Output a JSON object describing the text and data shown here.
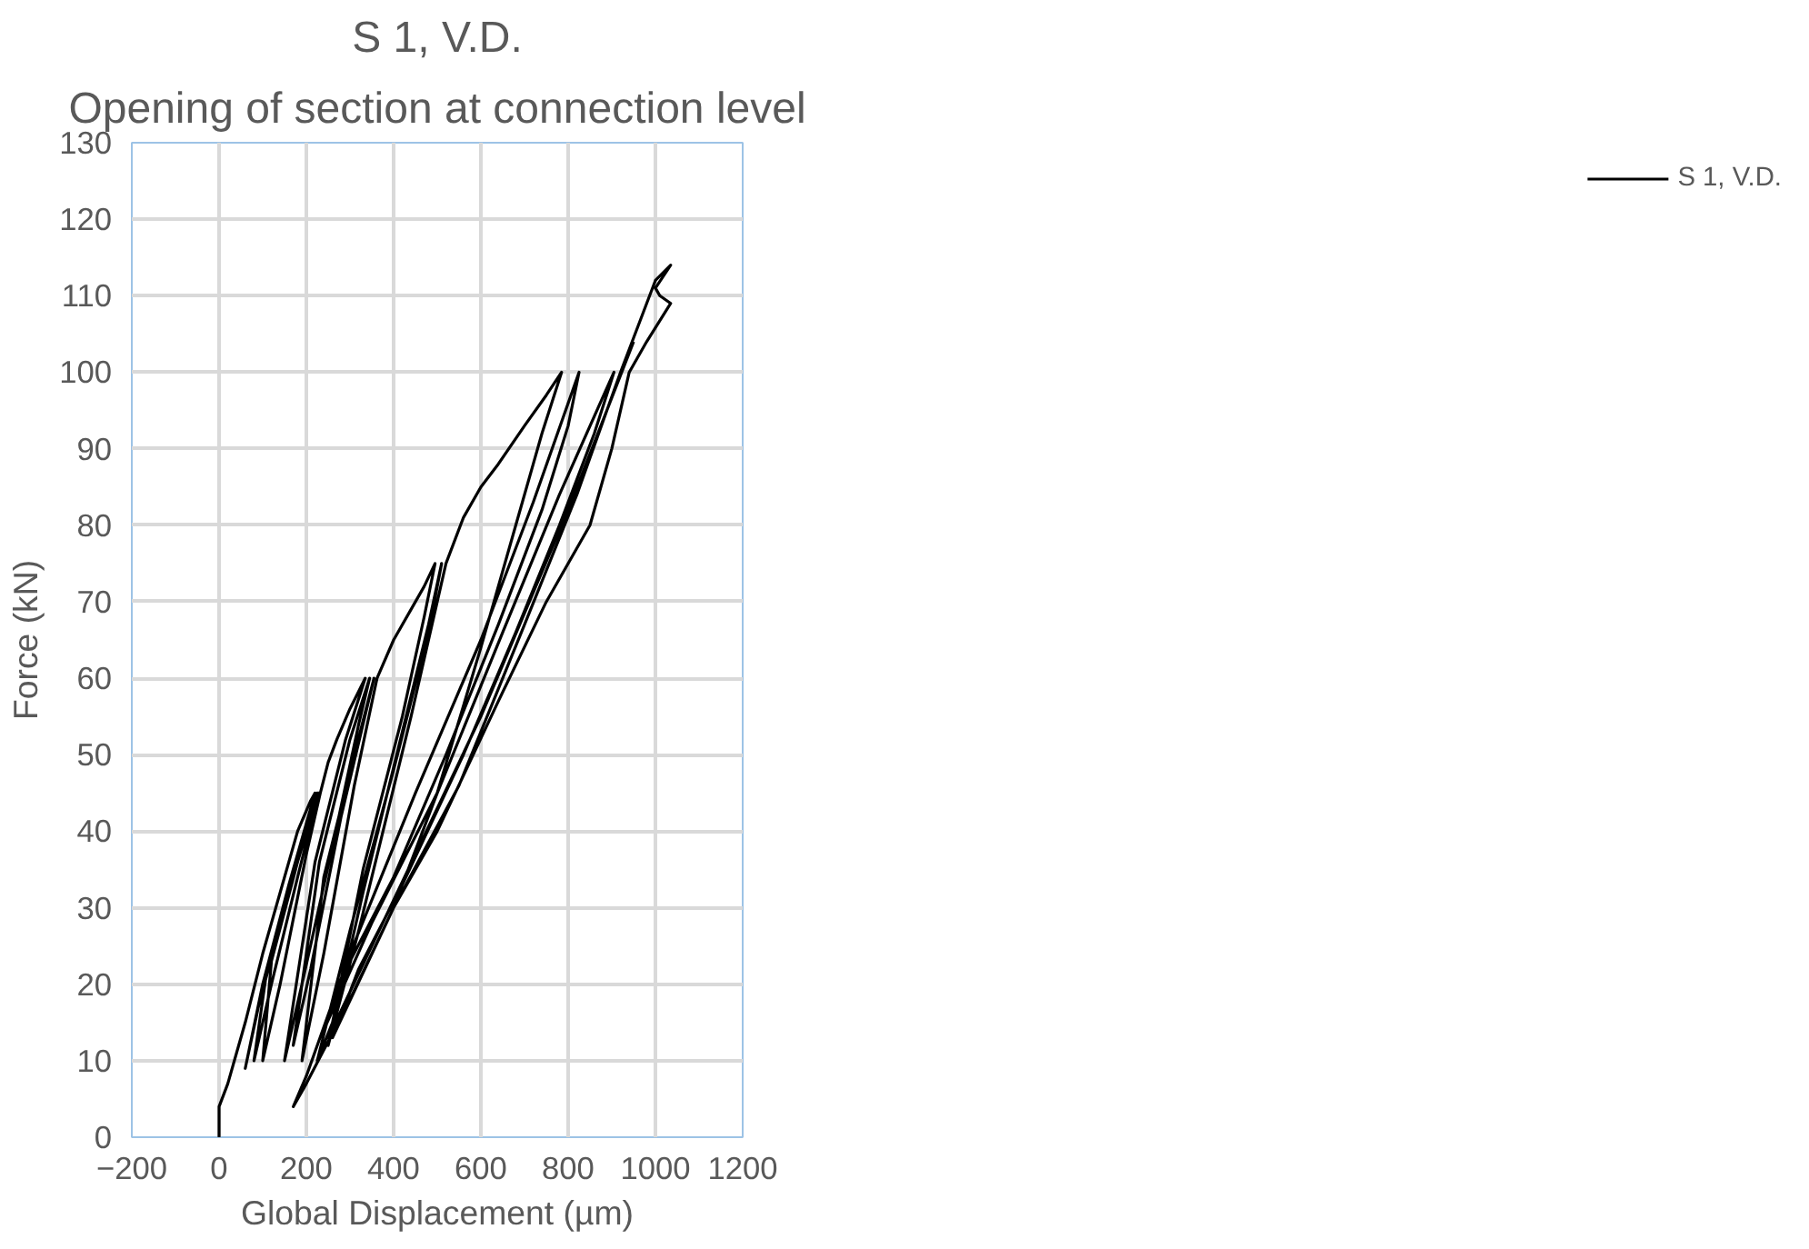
{
  "chart_data": {
    "type": "line",
    "title": "S 1, V.D.",
    "subtitle": "Opening of section at connection level",
    "xlabel": "Global Displacement (µm)",
    "ylabel": "Force (kN)",
    "xlim": [
      -200,
      1200
    ],
    "xticks": [
      -200,
      0,
      200,
      400,
      600,
      800,
      1000,
      1200
    ],
    "ylim": [
      0,
      130
    ],
    "yticks": [
      0,
      10,
      20,
      30,
      40,
      50,
      60,
      70,
      80,
      90,
      100,
      110,
      120,
      130
    ],
    "grid": true,
    "legend": "right",
    "marker": "none",
    "line_style": "solid",
    "series": [
      {
        "name": "S 1, V.D.",
        "color": "#000000",
        "x": [
          0,
          0,
          20,
          60,
          100,
          140,
          180,
          210,
          220,
          160,
          100,
          60,
          90,
          150,
          200,
          225,
          170,
          110,
          80,
          120,
          180,
          228,
          180,
          120,
          100,
          140,
          200,
          232,
          250,
          270,
          300,
          335,
          290,
          220,
          150,
          190,
          260,
          320,
          345,
          300,
          230,
          170,
          210,
          280,
          355,
          310,
          240,
          190,
          240,
          310,
          362,
          400,
          440,
          470,
          495,
          470,
          420,
          330,
          260,
          225,
          300,
          400,
          480,
          510,
          480,
          420,
          330,
          250,
          320,
          440,
          520,
          560,
          600,
          640,
          700,
          750,
          785,
          740,
          680,
          600,
          500,
          400,
          300,
          200,
          170,
          200,
          300,
          450,
          600,
          720,
          825,
          800,
          740,
          640,
          520,
          400,
          300,
          240,
          350,
          500,
          650,
          780,
          905,
          860,
          780,
          680,
          560,
          420,
          320,
          260,
          400,
          550,
          700,
          820,
          920,
          980,
          1000,
          1035,
          1000,
          1010,
          1035,
          980,
          940,
          900,
          850,
          750,
          640,
          500,
          400,
          300,
          250,
          400,
          600,
          800,
          950
        ],
        "values": [
          0,
          4,
          7,
          15,
          24,
          32,
          40,
          44,
          45,
          33,
          20,
          9,
          17,
          30,
          40,
          45,
          35,
          22,
          10,
          20,
          34,
          45,
          36,
          23,
          10,
          20,
          37,
          45,
          49,
          52,
          56,
          60,
          52,
          36,
          10,
          20,
          38,
          54,
          60,
          52,
          36,
          12,
          22,
          42,
          60,
          50,
          34,
          10,
          24,
          46,
          60,
          65,
          69,
          72,
          75,
          68,
          55,
          35,
          15,
          10,
          27,
          48,
          66,
          75,
          67,
          53,
          32,
          12,
          27,
          55,
          75,
          81,
          85,
          88,
          93,
          97,
          100,
          92,
          80,
          64,
          45,
          30,
          18,
          7,
          4,
          8,
          24,
          45,
          65,
          83,
          100,
          93,
          82,
          67,
          50,
          34,
          23,
          14,
          28,
          45,
          66,
          84,
          100,
          92,
          80,
          66,
          50,
          33,
          22,
          13,
          30,
          46,
          67,
          84,
          100,
          109,
          112,
          114,
          111,
          110,
          109,
          104,
          100,
          90,
          80,
          70,
          57,
          40,
          30,
          18,
          13,
          31,
          55,
          82,
          104
        ]
      }
    ]
  }
}
